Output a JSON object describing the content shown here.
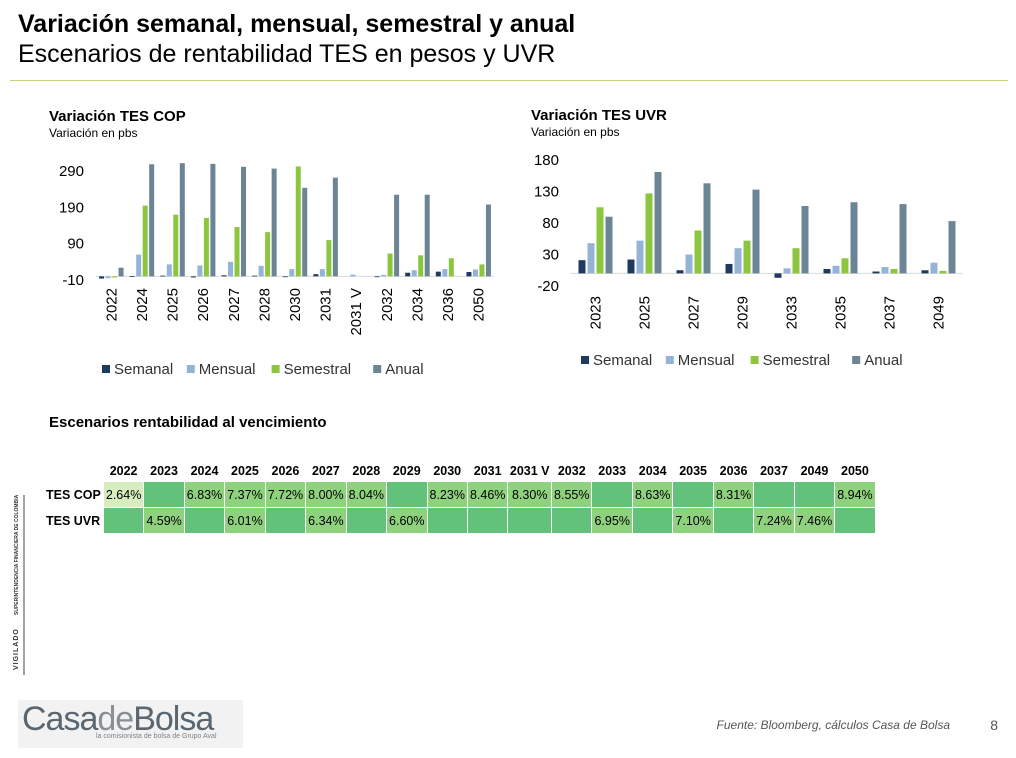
{
  "header": {
    "title": "Variación semanal, mensual, semestral y anual",
    "subtitle": "Escenarios de rentabilidad TES en pesos y UVR"
  },
  "colors": {
    "semanal": "#1f3a5f",
    "mensual": "#95b3d7",
    "semestral": "#8cc63f",
    "anual": "#6b8595"
  },
  "chart_data": [
    {
      "type": "bar",
      "title": "Variación TES COP",
      "subtitle": "Variación en pbs",
      "categories": [
        "2022",
        "2024",
        "2025",
        "2026",
        "2027",
        "2028",
        "2030",
        "2031",
        "2031 V",
        "2032",
        "2034",
        "2036",
        "2050"
      ],
      "yticks": [
        -10,
        90,
        190,
        290
      ],
      "ylim": [
        -10,
        340
      ],
      "series": [
        {
          "name": "Semanal",
          "values": [
            -6,
            1,
            2,
            -3,
            3,
            2,
            -2,
            6,
            0,
            -2,
            10,
            13,
            12
          ]
        },
        {
          "name": "Mensual",
          "values": [
            -5,
            60,
            33,
            30,
            40,
            29,
            20,
            20,
            5,
            4,
            17,
            20,
            19
          ]
        },
        {
          "name": "Semestral",
          "values": [
            -3,
            195,
            170,
            161,
            136,
            122,
            303,
            100,
            0,
            63,
            58,
            50,
            33
          ]
        },
        {
          "name": "Anual",
          "values": [
            24,
            309,
            312,
            310,
            302,
            297,
            244,
            272,
            0,
            225,
            225,
            0,
            198
          ]
        }
      ],
      "legend": "bottom"
    },
    {
      "type": "bar",
      "title": "Variación TES UVR",
      "subtitle": "Variación en pbs",
      "categories": [
        "2023",
        "2025",
        "2027",
        "2029",
        "2033",
        "2035",
        "2037",
        "2049"
      ],
      "yticks": [
        -20,
        30,
        80,
        130,
        180
      ],
      "ylim": [
        -20,
        180
      ],
      "series": [
        {
          "name": "Semanal",
          "values": [
            21,
            22,
            5,
            15,
            -7,
            7,
            3,
            5
          ]
        },
        {
          "name": "Mensual",
          "values": [
            48,
            52,
            30,
            40,
            8,
            12,
            10,
            17
          ]
        },
        {
          "name": "Semestral",
          "values": [
            105,
            127,
            68,
            52,
            40,
            24,
            7,
            4
          ]
        },
        {
          "name": "Anual",
          "values": [
            90,
            161,
            143,
            133,
            107,
            113,
            110,
            83
          ]
        }
      ],
      "legend": "bottom"
    }
  ],
  "table": {
    "title": "Escenarios rentabilidad al vencimiento",
    "columns": [
      "2022",
      "2023",
      "2024",
      "2025",
      "2026",
      "2027",
      "2028",
      "2029",
      "2030",
      "2031",
      "2031 V",
      "2032",
      "2033",
      "2034",
      "2035",
      "2036",
      "2037",
      "2049",
      "2050"
    ],
    "rows": [
      {
        "label": "TES COP",
        "values": [
          "2.64%",
          "",
          "6.83%",
          "7.37%",
          "7.72%",
          "8.00%",
          "8.04%",
          "",
          "8.23%",
          "8.46%",
          "8.30%",
          "8.55%",
          "",
          "8.63%",
          "",
          "8.31%",
          "",
          "",
          "8.94%"
        ]
      },
      {
        "label": "TES UVR",
        "values": [
          "",
          "4.59%",
          "",
          "6.01%",
          "",
          "6.34%",
          "",
          "6.60%",
          "",
          "",
          "",
          "",
          "6.95%",
          "",
          "7.10%",
          "",
          "7.24%",
          "7.46%",
          ""
        ]
      }
    ]
  },
  "footer": {
    "source": "Fuente: Bloomberg, cálculos Casa de Bolsa",
    "page": "8",
    "logo_a": "Casa",
    "logo_b": "de",
    "logo_c": "Bolsa",
    "logo_tagline": "la comisionista de bolsa de Grupo Aval",
    "vigilado": "VIGILADO",
    "superintendencia": "SUPERINTENDENCIA FINANCIERA DE COLOMBIA"
  }
}
